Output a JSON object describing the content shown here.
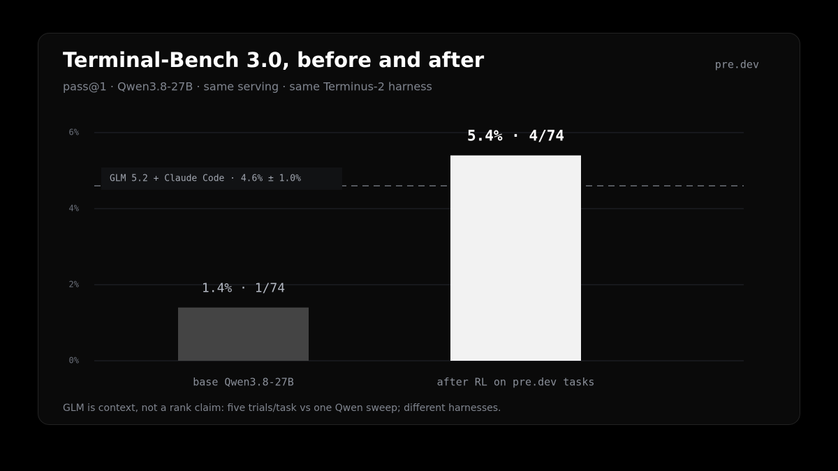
{
  "chart_data": {
    "type": "bar",
    "title": "Terminal-Bench 3.0, before and after",
    "subtitle": "pass@1 · Qwen3.8-27B · same serving · same Terminus-2 harness",
    "brand": "pre.dev",
    "categories": [
      "base Qwen3.8-27B",
      "after RL on pre.dev tasks"
    ],
    "values": [
      1.4,
      5.4
    ],
    "value_labels": [
      "1.4% · 1/74",
      "5.4% · 4/74"
    ],
    "colors": [
      "#444444",
      "#f2f2f2"
    ],
    "ylim": [
      0,
      6
    ],
    "yticks": [
      {
        "value": 0,
        "label": "0%"
      },
      {
        "value": 2,
        "label": "2%"
      },
      {
        "value": 4,
        "label": "4%"
      },
      {
        "value": 6,
        "label": "6%"
      }
    ],
    "grid": true,
    "reference_line": {
      "value": 4.6,
      "label": "GLM 5.2 + Claude Code · 4.6% ± 1.0%"
    },
    "footnote": "GLM is context, not a rank claim: five trials/task vs one Qwen sweep; different harnesses."
  }
}
